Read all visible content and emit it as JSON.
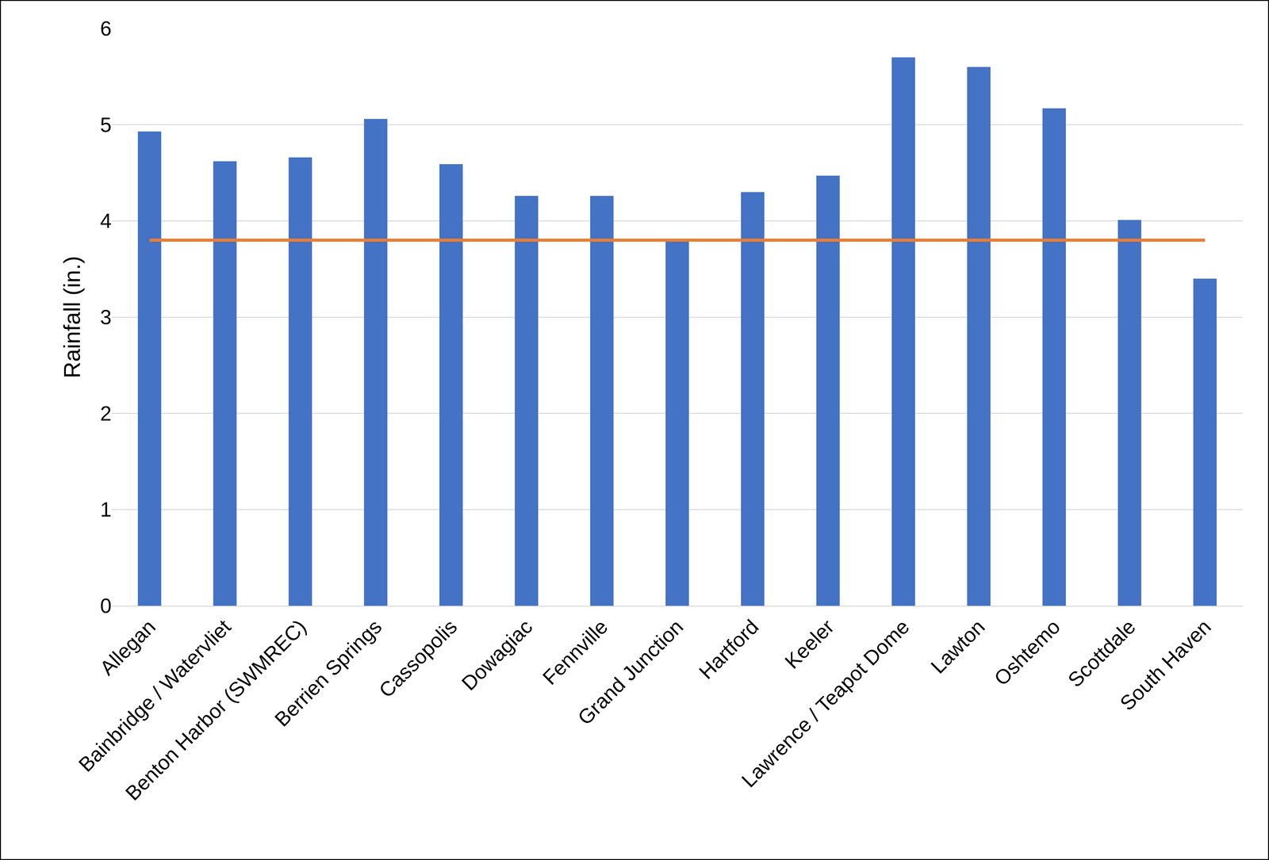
{
  "chart_data": {
    "type": "bar",
    "y_label": "Rainfall (in.)",
    "categories": [
      "Allegan",
      "Bainbridge / Watervliet",
      "Benton Harbor (SWMREC)",
      "Berrien Springs",
      "Cassopolis",
      "Dowagiac",
      "Fennville",
      "Grand Junction",
      "Hartford",
      "Keeler",
      "Lawrence / Teapot Dome",
      "Lawton",
      "Oshtemo",
      "Scottdale",
      "South Haven"
    ],
    "series": [
      {
        "type": "bar",
        "color": "#4472c4",
        "values": [
          4.93,
          4.62,
          4.66,
          5.06,
          4.59,
          4.26,
          4.26,
          3.8,
          4.3,
          4.47,
          5.7,
          5.6,
          5.17,
          4.01,
          3.4
        ]
      },
      {
        "type": "line",
        "color": "#ed7d31",
        "values": [
          3.8,
          3.8,
          3.8,
          3.8,
          3.8,
          3.8,
          3.8,
          3.8,
          3.8,
          3.8,
          3.8,
          3.8,
          3.8,
          3.8,
          3.8
        ]
      }
    ],
    "ylim": [
      0,
      6
    ],
    "yticks": [
      0,
      1,
      2,
      3,
      4,
      5,
      6
    ],
    "grid": true
  }
}
